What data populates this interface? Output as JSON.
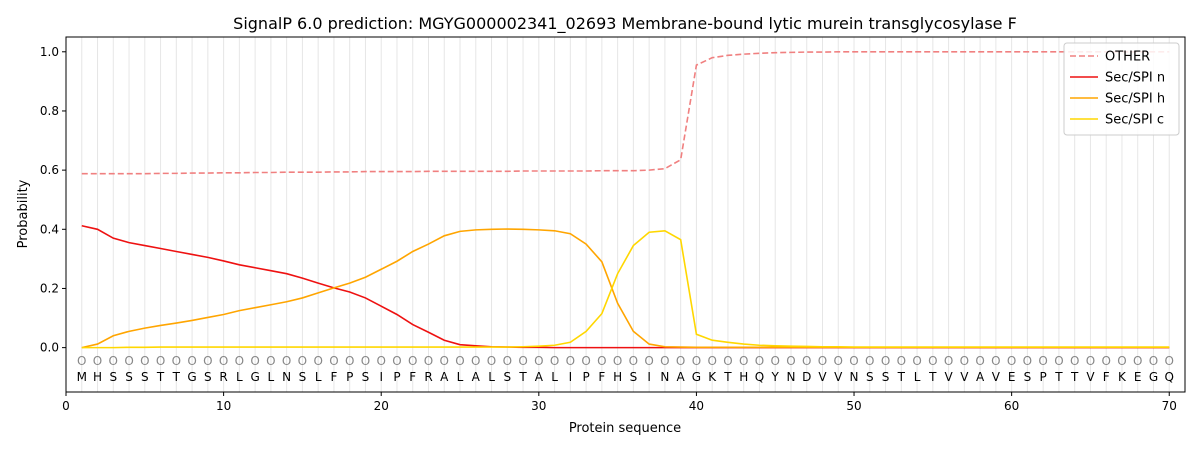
{
  "chart_data": {
    "type": "line",
    "title": "SignalP 6.0 prediction: MGYG000002341_02693 Membrane-bound lytic murein transglycosylase F",
    "xlabel": "Protein sequence",
    "ylabel": "Probability",
    "xlim": [
      0,
      71
    ],
    "ylim": [
      -0.15,
      1.05
    ],
    "xticks": [
      0,
      10,
      20,
      30,
      40,
      50,
      60,
      70
    ],
    "yticks": [
      0.0,
      0.2,
      0.4,
      0.6,
      0.8,
      1.0
    ],
    "xtick_labels": [
      "0",
      "10",
      "20",
      "30",
      "40",
      "50",
      "60",
      "70"
    ],
    "ytick_labels": [
      "0.0",
      "0.2",
      "0.4",
      "0.6",
      "0.8",
      "1.0"
    ],
    "grid": "vertical lines at each residue",
    "legend_position": "top-right",
    "sequence": [
      "M",
      "H",
      "S",
      "S",
      "S",
      "T",
      "T",
      "G",
      "S",
      "R",
      "L",
      "G",
      "L",
      "N",
      "S",
      "L",
      "F",
      "P",
      "S",
      "I",
      "P",
      "F",
      "R",
      "A",
      "L",
      "A",
      "L",
      "S",
      "T",
      "A",
      "L",
      "I",
      "P",
      "F",
      "H",
      "S",
      "I",
      "N",
      "A",
      "G",
      "K",
      "T",
      "H",
      "Q",
      "Y",
      "N",
      "D",
      "V",
      "V",
      "N",
      "S",
      "S",
      "T",
      "L",
      "T",
      "V",
      "V",
      "A",
      "V",
      "E",
      "S",
      "P",
      "T",
      "T",
      "V",
      "F",
      "K",
      "E",
      "G",
      "Q"
    ],
    "label_marker": "O",
    "x": [
      1,
      2,
      3,
      4,
      5,
      6,
      7,
      8,
      9,
      10,
      11,
      12,
      13,
      14,
      15,
      16,
      17,
      18,
      19,
      20,
      21,
      22,
      23,
      24,
      25,
      26,
      27,
      28,
      29,
      30,
      31,
      32,
      33,
      34,
      35,
      36,
      37,
      38,
      39,
      40,
      41,
      42,
      43,
      44,
      45,
      46,
      47,
      48,
      49,
      50,
      51,
      52,
      53,
      54,
      55,
      56,
      57,
      58,
      59,
      60,
      61,
      62,
      63,
      64,
      65,
      66,
      67,
      68,
      69,
      70
    ],
    "series": [
      {
        "name": "OTHER",
        "color": "#f08080",
        "dash": true,
        "values": [
          0.588,
          0.588,
          0.588,
          0.588,
          0.588,
          0.589,
          0.589,
          0.59,
          0.59,
          0.591,
          0.591,
          0.592,
          0.592,
          0.593,
          0.593,
          0.593,
          0.594,
          0.594,
          0.595,
          0.595,
          0.595,
          0.595,
          0.596,
          0.596,
          0.596,
          0.596,
          0.596,
          0.596,
          0.597,
          0.597,
          0.597,
          0.597,
          0.597,
          0.598,
          0.598,
          0.598,
          0.6,
          0.605,
          0.635,
          0.955,
          0.98,
          0.988,
          0.992,
          0.995,
          0.997,
          0.998,
          0.999,
          0.999,
          1.0,
          1.0,
          1.0,
          1.0,
          1.0,
          1.0,
          1.0,
          1.0,
          1.0,
          1.0,
          1.0,
          1.0,
          1.0,
          1.0,
          1.0,
          1.0,
          1.0,
          1.0,
          1.0,
          1.0,
          1.0,
          1.0
        ]
      },
      {
        "name": "Sec/SPI n",
        "color": "#ee1111",
        "dash": false,
        "values": [
          0.412,
          0.4,
          0.37,
          0.355,
          0.345,
          0.335,
          0.325,
          0.315,
          0.305,
          0.293,
          0.28,
          0.27,
          0.26,
          0.25,
          0.235,
          0.218,
          0.202,
          0.188,
          0.168,
          0.14,
          0.112,
          0.078,
          0.052,
          0.025,
          0.01,
          0.006,
          0.003,
          0.002,
          0.001,
          0.001,
          0.0,
          0.0,
          0.0,
          0.0,
          0.0,
          0.0,
          0.0,
          0.0,
          0.0,
          0.0,
          0.0,
          0.0,
          0.0,
          0.0,
          0.0,
          0.0,
          0.0,
          0.0,
          0.0,
          0.0,
          0.0,
          0.0,
          0.0,
          0.0,
          0.0,
          0.0,
          0.0,
          0.0,
          0.0,
          0.0,
          0.0,
          0.0,
          0.0,
          0.0,
          0.0,
          0.0,
          0.0,
          0.0,
          0.0,
          0.0
        ]
      },
      {
        "name": "Sec/SPI h",
        "color": "#ffa500",
        "dash": false,
        "values": [
          0.0,
          0.012,
          0.04,
          0.055,
          0.066,
          0.075,
          0.083,
          0.092,
          0.102,
          0.112,
          0.125,
          0.135,
          0.145,
          0.155,
          0.168,
          0.185,
          0.202,
          0.218,
          0.238,
          0.265,
          0.292,
          0.325,
          0.35,
          0.378,
          0.393,
          0.398,
          0.4,
          0.401,
          0.4,
          0.398,
          0.395,
          0.385,
          0.35,
          0.29,
          0.15,
          0.055,
          0.012,
          0.003,
          0.002,
          0.001,
          0.001,
          0.001,
          0.001,
          0.001,
          0.001,
          0.001,
          0.001,
          0.001,
          0.001,
          0.001,
          0.001,
          0.001,
          0.001,
          0.001,
          0.001,
          0.001,
          0.001,
          0.001,
          0.001,
          0.001,
          0.001,
          0.001,
          0.001,
          0.001,
          0.001,
          0.001,
          0.001,
          0.001,
          0.001,
          0.001
        ]
      },
      {
        "name": "Sec/SPI c",
        "color": "#ffd700",
        "dash": false,
        "values": [
          0.0,
          0.0,
          0.0,
          0.001,
          0.001,
          0.002,
          0.002,
          0.002,
          0.002,
          0.002,
          0.002,
          0.002,
          0.002,
          0.002,
          0.002,
          0.002,
          0.002,
          0.002,
          0.002,
          0.002,
          0.002,
          0.002,
          0.002,
          0.002,
          0.002,
          0.002,
          0.002,
          0.002,
          0.003,
          0.005,
          0.008,
          0.018,
          0.055,
          0.115,
          0.25,
          0.345,
          0.39,
          0.395,
          0.365,
          0.045,
          0.025,
          0.018,
          0.012,
          0.008,
          0.006,
          0.005,
          0.004,
          0.003,
          0.003,
          0.002,
          0.002,
          0.002,
          0.002,
          0.002,
          0.002,
          0.002,
          0.002,
          0.002,
          0.002,
          0.002,
          0.002,
          0.002,
          0.002,
          0.002,
          0.002,
          0.002,
          0.002,
          0.002,
          0.002,
          0.002
        ]
      }
    ]
  }
}
